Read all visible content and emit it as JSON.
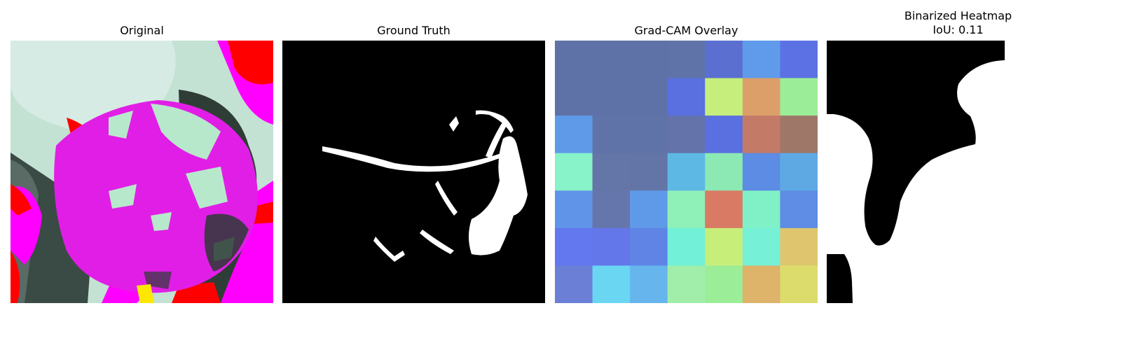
{
  "panels": [
    {
      "title": "Original"
    },
    {
      "title": "Ground Truth"
    },
    {
      "title": "Grad-CAM Overlay"
    },
    {
      "title_line1": "Binarized Heatmap",
      "title_line2": "IoU: 0.11"
    }
  ],
  "gradcam_grid": [
    [
      "#5f72a8",
      "#5f72a8",
      "#5f72a8",
      "#6073a8",
      "#5a6fcf",
      "#5f9bea",
      "#5c72e4"
    ],
    [
      "#5f72a8",
      "#5f72a8",
      "#5f72a8",
      "#5a6fe0",
      "#c6ee7c",
      "#dc9f69",
      "#9ced97"
    ],
    [
      "#5f9ae8",
      "#6073a8",
      "#6073a8",
      "#6473aa",
      "#5a6fe0",
      "#c37b67",
      "#9f7769"
    ],
    [
      "#88f2c8",
      "#6475a8",
      "#6374a6",
      "#5db8e4",
      "#8ce9b4",
      "#5c8ce4",
      "#5ea9e4"
    ],
    [
      "#5f94e8",
      "#6576ac",
      "#5f9ae8",
      "#8ff0b8",
      "#d87a64",
      "#80f0c6",
      "#5f8ce4"
    ],
    [
      "#6377ee",
      "#6477ea",
      "#5f84e6",
      "#72f0d8",
      "#c8ee7a",
      "#76f0d6",
      "#dfc66e"
    ],
    [
      "#6b7fd6",
      "#6ad6f2",
      "#66b5ec",
      "#a0eeaa",
      "#9ced97",
      "#deb36a",
      "#dcdc6c"
    ]
  ],
  "colors": {
    "magenta": "#ff00ff",
    "red": "#ff0000",
    "pale_green": "#c8ecd2",
    "dark_green": "#2c3a34",
    "black": "#000000",
    "white": "#ffffff"
  }
}
